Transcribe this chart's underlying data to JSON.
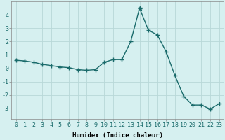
{
  "x": [
    0,
    1,
    2,
    3,
    4,
    5,
    6,
    7,
    8,
    9,
    10,
    11,
    12,
    13,
    14,
    15,
    16,
    17,
    18,
    19,
    20,
    21,
    22,
    23
  ],
  "y": [
    0.6,
    0.55,
    0.45,
    0.3,
    0.2,
    0.1,
    0.05,
    -0.1,
    -0.15,
    -0.1,
    0.45,
    0.65,
    0.65,
    2.0,
    4.5,
    2.85,
    2.5,
    1.25,
    -0.55,
    -2.1,
    -2.75,
    -2.75,
    -3.05,
    -2.65
  ],
  "line_color": "#1a6b6b",
  "marker": "+",
  "marker_size": 4,
  "bg_color": "#d6f0f0",
  "grid_color": "#b8d8d8",
  "xlabel": "Humidex (Indice chaleur)",
  "xlim": [
    -0.5,
    23.5
  ],
  "ylim": [
    -3.8,
    5.0
  ],
  "yticks": [
    -3,
    -2,
    -1,
    0,
    1,
    2,
    3,
    4
  ],
  "xticks": [
    0,
    1,
    2,
    3,
    4,
    5,
    6,
    7,
    8,
    9,
    10,
    11,
    12,
    13,
    14,
    15,
    16,
    17,
    18,
    19,
    20,
    21,
    22,
    23
  ],
  "xlabel_fontsize": 6.5,
  "tick_fontsize": 6,
  "linewidth": 1.0,
  "marker_size_star": 5
}
